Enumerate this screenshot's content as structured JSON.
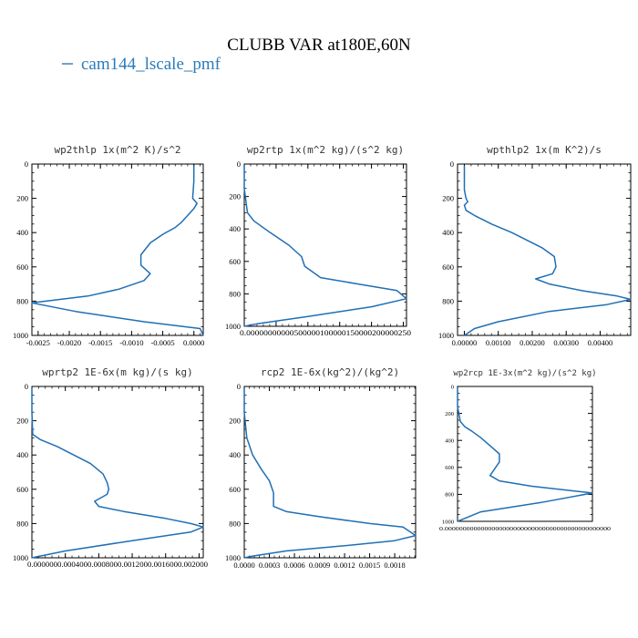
{
  "figure": {
    "title": "CLUBB VAR at180E,60N",
    "legend_label": "cam144_lscale_pmf",
    "legend_color": "#2b7bb9",
    "line_color": "#1f6fb4"
  },
  "chart_data": [
    {
      "type": "line",
      "title": "wp2thlp  1x(m^2 K)/s^2",
      "series": [
        {
          "name": "cam144_lscale_pmf",
          "x": [
            0.0,
            0.0,
            -2e-05,
            5e-05,
            0.0,
            -0.0001,
            -0.0002,
            -0.0003,
            -0.0005,
            -0.0007,
            -0.00085,
            -0.00085,
            -0.0007,
            -0.0008,
            -0.0012,
            -0.0017,
            -0.0026,
            -0.0019,
            -0.0008,
            0.0001,
            0.00015
          ],
          "y": [
            10,
            100,
            200,
            230,
            260,
            300,
            340,
            370,
            410,
            460,
            530,
            590,
            640,
            680,
            730,
            770,
            810,
            860,
            920,
            960,
            1000
          ]
        }
      ],
      "xlim": [
        -0.0026,
        0.00015
      ],
      "ylim": [
        0,
        1000
      ],
      "xticks": [
        -0.0025,
        -0.002,
        -0.0015,
        -0.001,
        -0.0005,
        0.0
      ],
      "xtick_labels": [
        "-0.0025",
        "-0.0020",
        "-0.0015",
        "-0.0010",
        "-0.0005",
        "0.0000"
      ],
      "yticks": [
        0,
        200,
        400,
        600,
        800,
        1000
      ],
      "ytick_labels": [
        "0",
        "200",
        "400",
        "600",
        "800",
        "1000"
      ]
    },
    {
      "type": "line",
      "title": "wp2rtp  1x(m^2 kg)/(s^2 kg)",
      "series": [
        {
          "name": "cam144_lscale_pmf",
          "x": [
            0.0,
            0.0,
            5e-07,
            1.5e-06,
            4e-06,
            7e-06,
            9e-06,
            9.5e-06,
            1.2e-05,
            1.8e-05,
            2.4e-05,
            2.55e-05,
            2e-05,
            1e-05,
            2e-06,
            0.0
          ],
          "y": [
            10,
            150,
            300,
            350,
            420,
            500,
            570,
            630,
            700,
            740,
            780,
            830,
            880,
            940,
            985,
            1000
          ]
        }
      ],
      "xlim": [
        0.0,
        2.55e-05
      ],
      "ylim": [
        0,
        1000
      ],
      "xticks": [
        0.0,
        5e-06,
        1e-05,
        1.5e-05,
        2e-05,
        2.5e-05
      ],
      "xtick_labels": [
        "0.000000",
        "0.000005",
        "0.000010",
        "0.000015",
        "0.000020",
        "0.000025"
      ],
      "xtick_row_label": "0.00000000000500000100000150000200000250",
      "yticks": [
        0,
        200,
        400,
        600,
        800,
        1000
      ],
      "ytick_labels": [
        "0",
        "200",
        "400",
        "600",
        "800",
        "1000"
      ]
    },
    {
      "type": "line",
      "title": "wpthlp2  1x(m K^2)/s",
      "series": [
        {
          "name": "cam144_lscale_pmf",
          "x": [
            0.0,
            0.0,
            5e-05,
            0.0001,
            0.0,
            5e-05,
            0.0003,
            0.0008,
            0.0014,
            0.0019,
            0.0023,
            0.00265,
            0.0027,
            0.0026,
            0.0021,
            0.0025,
            0.0035,
            0.0045,
            0.0049,
            0.0042,
            0.0025,
            0.001,
            0.0003,
            0.0
          ],
          "y": [
            10,
            150,
            200,
            220,
            240,
            270,
            300,
            350,
            400,
            450,
            490,
            540,
            600,
            640,
            670,
            700,
            740,
            770,
            790,
            820,
            860,
            920,
            960,
            1000
          ]
        }
      ],
      "xlim": [
        -0.0002,
        0.0049
      ],
      "ylim": [
        0,
        1000
      ],
      "xticks": [
        0.0,
        0.001,
        0.002,
        0.003,
        0.004
      ],
      "xtick_labels": [
        "0.00000",
        "0.00100",
        "0.00200",
        "0.00300",
        "0.00400"
      ],
      "yticks": [
        0,
        200,
        400,
        600,
        800,
        1000
      ],
      "ytick_labels": [
        "0",
        "200",
        "400",
        "600",
        "800",
        "1000"
      ]
    },
    {
      "type": "line",
      "title": "wprtp2  1E-6x(m kg)/(s kg)",
      "series": [
        {
          "name": "cam144_lscale_pmf",
          "x": [
            0.0,
            0.0,
            1e-05,
            0.0001,
            0.0003,
            0.0005,
            0.0007,
            0.00085,
            0.0009,
            0.00092,
            0.0009,
            0.00075,
            0.0008,
            0.0011,
            0.0016,
            0.0019,
            0.00205,
            0.0019,
            0.0012,
            0.0004,
            0.0
          ],
          "y": [
            10,
            150,
            280,
            310,
            350,
            400,
            450,
            510,
            560,
            600,
            630,
            670,
            700,
            730,
            770,
            800,
            820,
            850,
            900,
            960,
            1000
          ]
        }
      ],
      "xlim": [
        0.0,
        0.00205
      ],
      "ylim": [
        0,
        1000
      ],
      "xticks": [
        0.0,
        0.0004,
        0.0008,
        0.0012,
        0.0016,
        0.002
      ],
      "xtick_labels": [
        "0.000000",
        "0.000400",
        "0.000800",
        "0.001200",
        "0.001600",
        "0.002000"
      ],
      "xtick_row_label": "0.0000000.0004000.0008000.0012000.0016000.002000",
      "yticks": [
        0,
        200,
        400,
        600,
        800,
        1000
      ],
      "ytick_labels": [
        "0",
        "200",
        "400",
        "600",
        "800",
        "1000"
      ]
    },
    {
      "type": "line",
      "title": "rcp2  1E-6x(kg^2)/(kg^2)",
      "series": [
        {
          "name": "cam144_lscale_pmf",
          "x": [
            0.0,
            0.0,
            3e-05,
            0.0001,
            0.0002,
            0.0003,
            0.00035,
            0.00035,
            0.0005,
            0.0009,
            0.0015,
            0.0019,
            0.00205,
            0.0018,
            0.0012,
            0.0005,
            0.0001,
            0.0
          ],
          "y": [
            10,
            150,
            300,
            400,
            480,
            550,
            620,
            700,
            730,
            760,
            800,
            820,
            870,
            900,
            930,
            960,
            990,
            1000
          ]
        }
      ],
      "xlim": [
        0.0,
        0.00205
      ],
      "ylim": [
        0,
        1000
      ],
      "xticks": [
        0.0,
        0.0003,
        0.0006,
        0.0009,
        0.0012,
        0.0015,
        0.0018
      ],
      "xtick_labels": [
        "0.0000",
        "0.0003",
        "0.0006",
        "0.0009",
        "0.0012",
        "0.0015",
        "0.0018"
      ],
      "yticks": [
        0,
        200,
        400,
        600,
        800,
        1000
      ],
      "ytick_labels": [
        "0",
        "200",
        "400",
        "600",
        "800",
        "1000"
      ]
    },
    {
      "type": "line",
      "title": "wp2rcp  1E-3x(m^2 kg)/(s^2 kg)",
      "series": [
        {
          "name": "cam144_lscale_pmf",
          "x": [
            0.0,
            0.0,
            3e-07,
            8e-07,
            1.5e-06,
            2.5e-06,
            3.5e-06,
            4.5e-06,
            4.5e-06,
            4e-06,
            3.5e-06,
            4.5e-06,
            8e-06,
            1.45e-05,
            9e-06,
            2.5e-06,
            0.0
          ],
          "y": [
            10,
            150,
            260,
            300,
            330,
            380,
            440,
            500,
            560,
            610,
            660,
            700,
            740,
            790,
            860,
            930,
            1000
          ]
        }
      ],
      "xlim": [
        0.0,
        1.45e-05
      ],
      "ylim": [
        0,
        1000
      ],
      "xtick_row_label": "0.0000000000000000000000000000000000000000000000",
      "yticks": [
        0,
        200,
        400,
        600,
        800,
        1000
      ],
      "ytick_labels": [
        "0",
        "200",
        "400",
        "600",
        "800",
        "1000"
      ]
    }
  ]
}
